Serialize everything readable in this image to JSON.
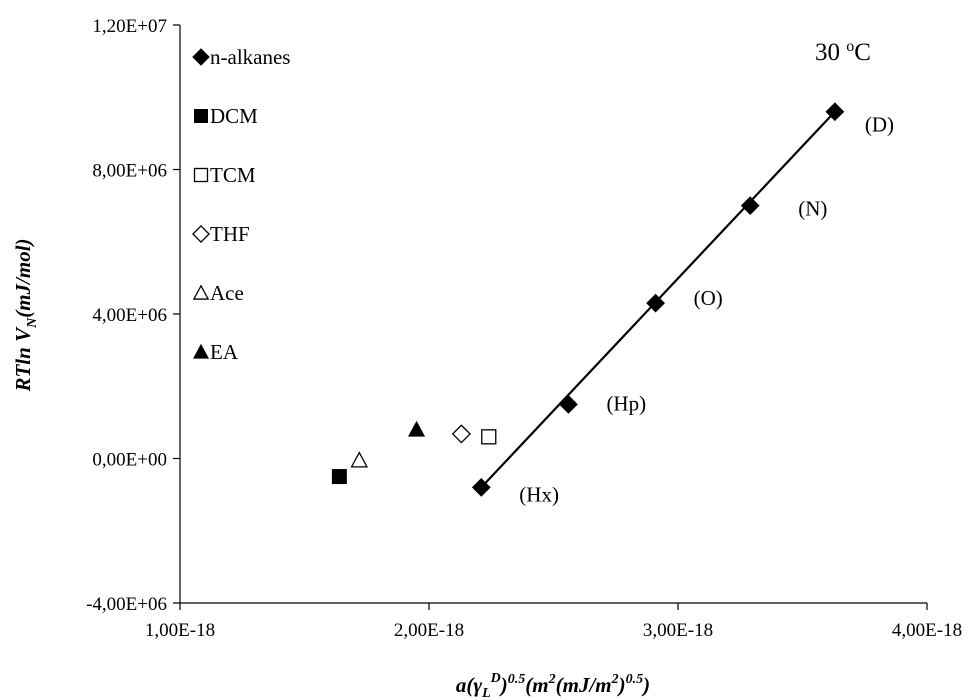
{
  "chart_data": {
    "type": "scatter",
    "title": "",
    "annotation": {
      "text_pre": "30 ",
      "sup": "o",
      "text_post": "C"
    },
    "xlabel": {
      "pre": "a(",
      "gamma": "γ",
      "sub": "L",
      "sup1": "D",
      "rp": ")",
      "sup2": "0.5",
      "mid": "(m",
      "sup3": "2",
      "mid2": "(mJ/m",
      "sup4": "2",
      "rp2": ")",
      "sup5": "0.5",
      "end": ")"
    },
    "ylabel": {
      "pre": "RTln V",
      "sub": "N",
      "post": "(mJ/mol)"
    },
    "xlim": [
      1e-18,
      4e-18
    ],
    "ylim": [
      -4000000.0,
      12000000.0
    ],
    "xticks": [
      {
        "value": 1e-18,
        "label": "1,00E-18"
      },
      {
        "value": 2e-18,
        "label": "2,00E-18"
      },
      {
        "value": 3e-18,
        "label": "3,00E-18"
      },
      {
        "value": 4e-18,
        "label": "4,00E-18"
      }
    ],
    "yticks": [
      {
        "value": -4000000.0,
        "label": "-4,00E+06"
      },
      {
        "value": 0,
        "label": "0,00E+00"
      },
      {
        "value": 4000000.0,
        "label": "4,00E+06"
      },
      {
        "value": 8000000.0,
        "label": "8,00E+06"
      },
      {
        "value": 12000000.0,
        "label": "1,20E+07"
      }
    ],
    "grid": false,
    "legend_position": "top-left",
    "series": [
      {
        "name": "n-alkanes",
        "marker": "diamond",
        "filled": true,
        "x": [
          2.21e-18,
          2.56e-18,
          2.91e-18,
          3.29e-18,
          3.63e-18
        ],
        "y": [
          -800000.0,
          1500000.0,
          4300000.0,
          7000000.0,
          9600000.0
        ],
        "labels": [
          "(Hx)",
          "(Hp)",
          "(O)",
          "(N)",
          "(D)"
        ],
        "fit_line": {
          "x": [
            2.21e-18,
            3.63e-18
          ],
          "y": [
            -800000.0,
            9600000.0
          ]
        }
      },
      {
        "name": "DCM",
        "marker": "square",
        "filled": true,
        "x": [
          1.64e-18
        ],
        "y": [
          -500000.0
        ]
      },
      {
        "name": "TCM",
        "marker": "square",
        "filled": false,
        "x": [
          2.24e-18
        ],
        "y": [
          600000.0
        ]
      },
      {
        "name": "THF",
        "marker": "diamond",
        "filled": false,
        "x": [
          2.13e-18
        ],
        "y": [
          680000.0
        ]
      },
      {
        "name": "Ace",
        "marker": "triangle",
        "filled": false,
        "x": [
          1.72e-18
        ],
        "y": [
          -50000.0
        ]
      },
      {
        "name": "EA",
        "marker": "triangle",
        "filled": true,
        "x": [
          1.95e-18
        ],
        "y": [
          800000.0
        ]
      }
    ]
  }
}
